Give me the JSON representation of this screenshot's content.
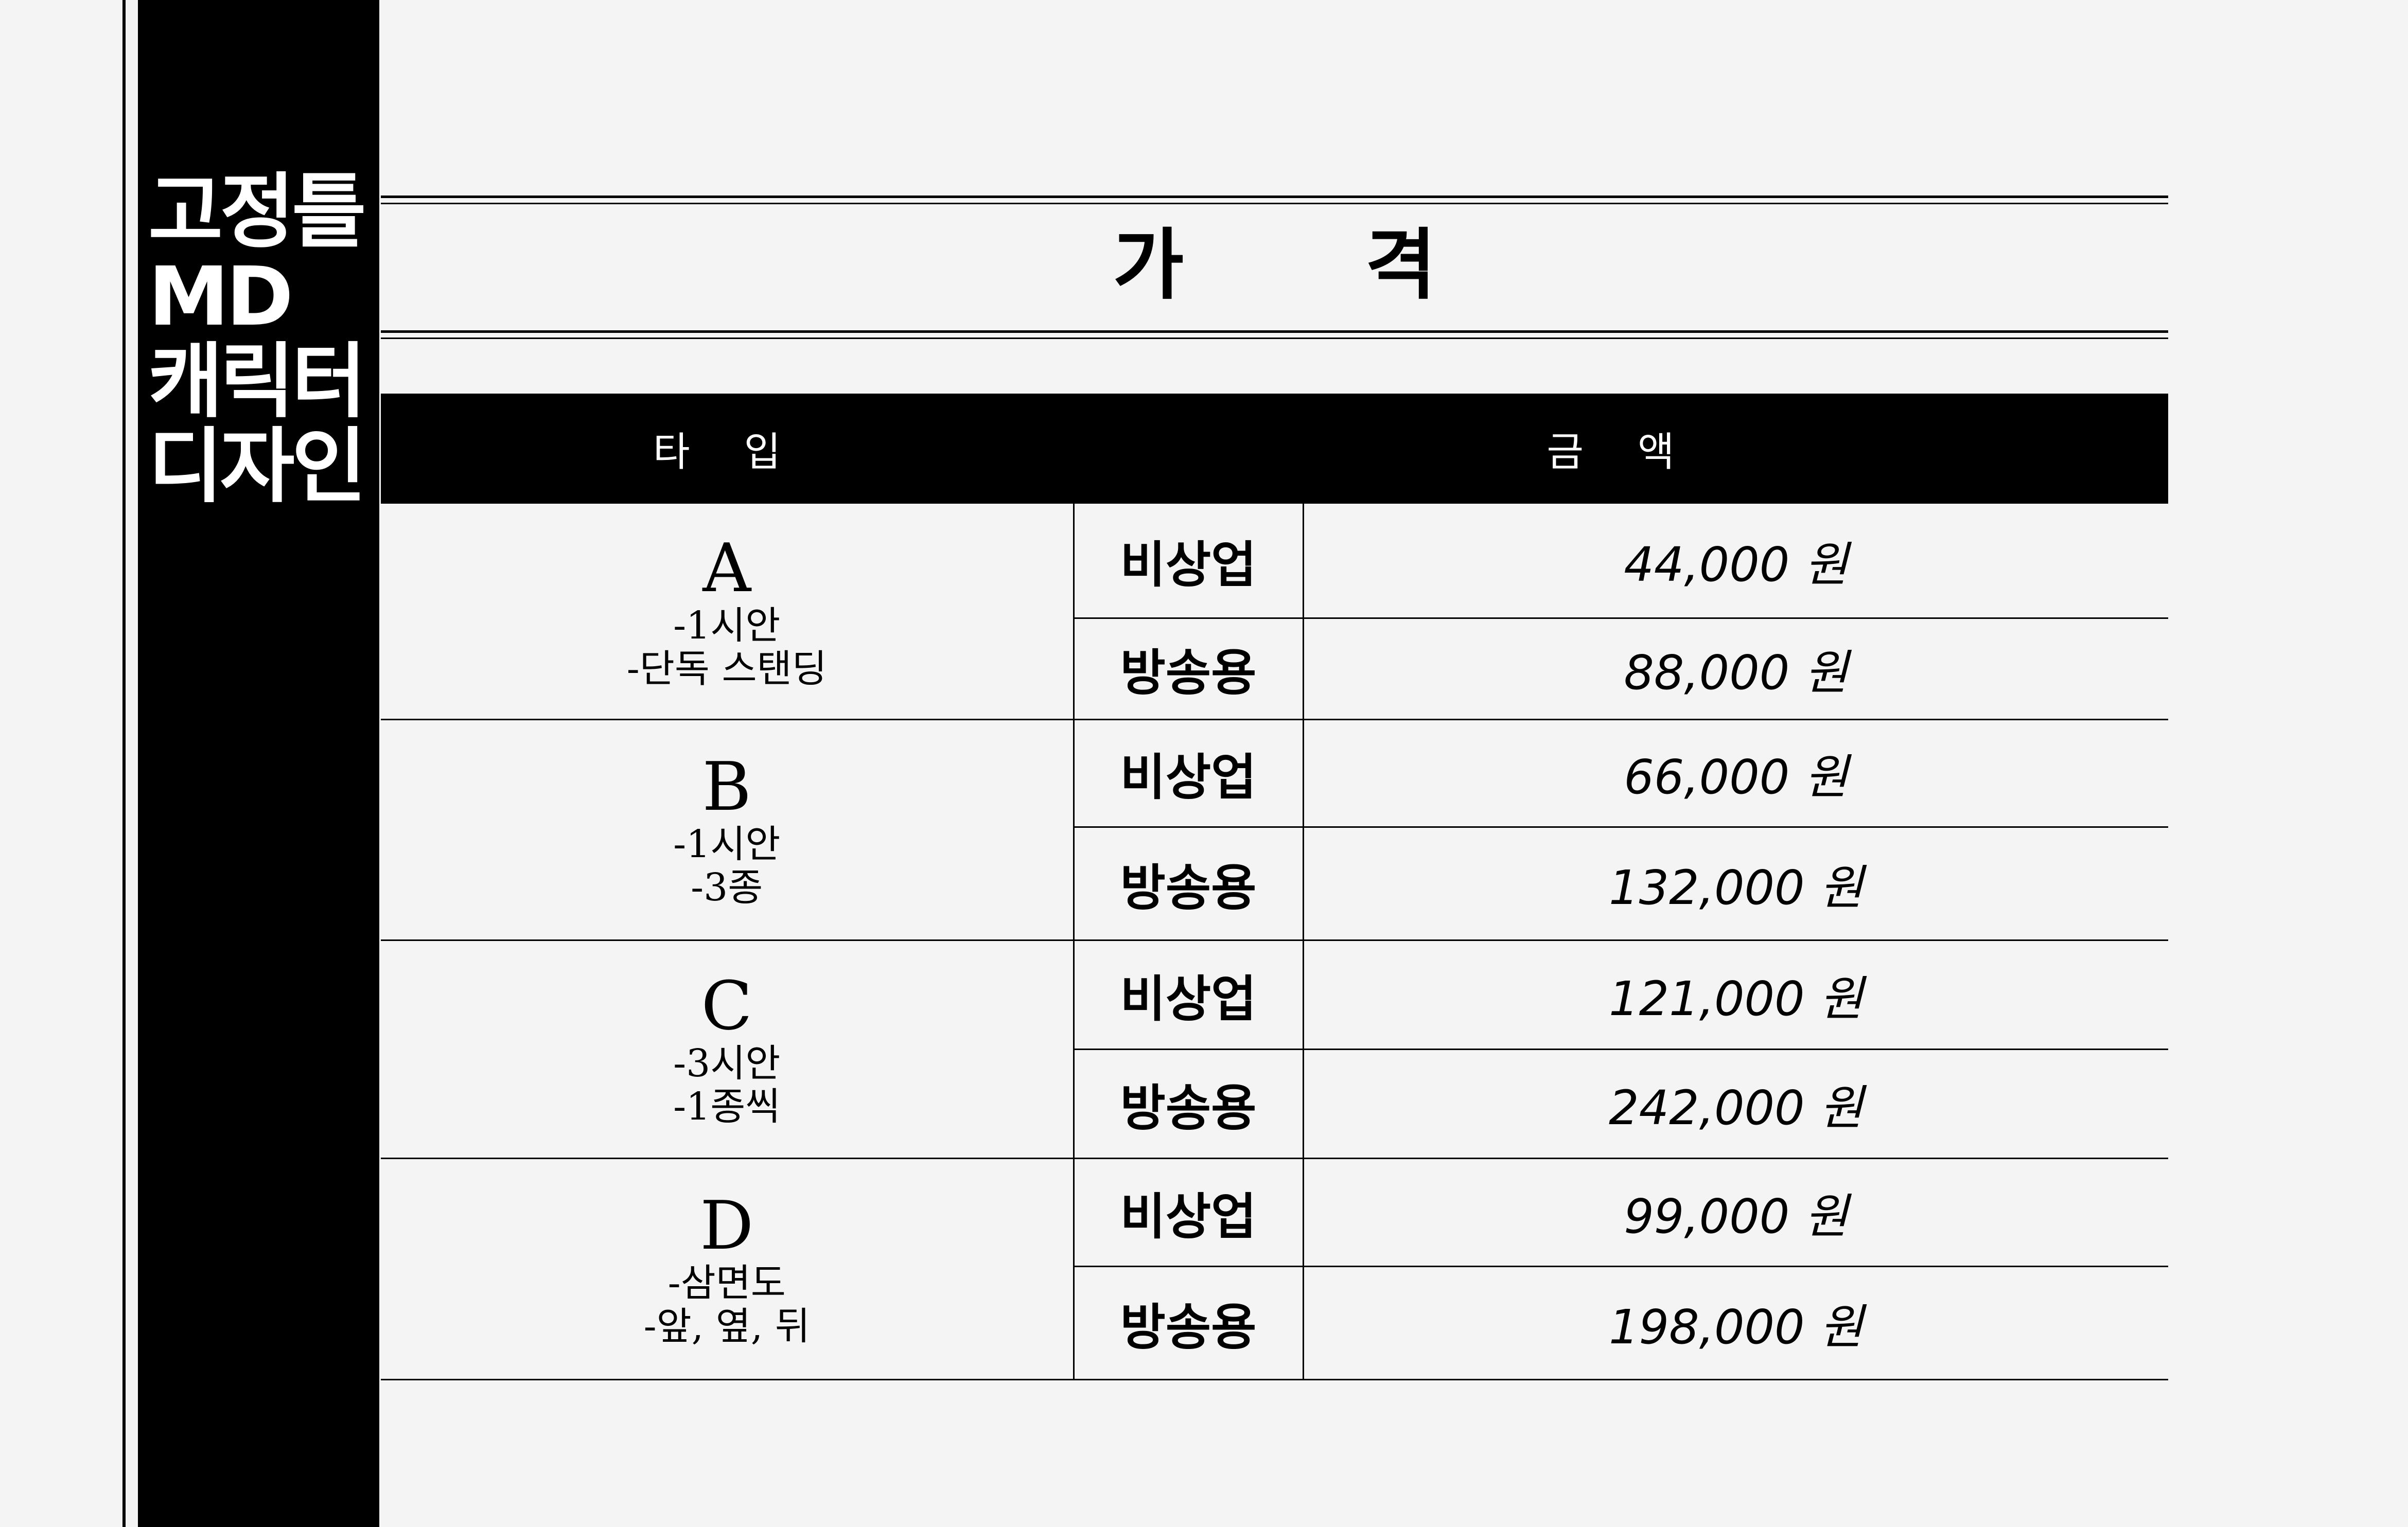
{
  "sidebar": {
    "title_lines": [
      "고정틀",
      "MD",
      "캐릭터",
      "디자인"
    ]
  },
  "page": {
    "title": "가 격"
  },
  "table": {
    "headers": {
      "type": "타 입",
      "amount": "금 액"
    },
    "rows": [
      {
        "letter": "A",
        "desc": [
          "-1시안",
          "-단독 스탠딩"
        ],
        "prices": [
          {
            "use": "비상업",
            "amount": "44,000 원"
          },
          {
            "use": "방송용",
            "amount": "88,000 원"
          }
        ]
      },
      {
        "letter": "B",
        "desc": [
          "-1시안",
          "-3종"
        ],
        "prices": [
          {
            "use": "비상업",
            "amount": "66,000 원"
          },
          {
            "use": "방송용",
            "amount": "132,000 원"
          }
        ]
      },
      {
        "letter": "C",
        "desc": [
          "-3시안",
          "-1종씩"
        ],
        "prices": [
          {
            "use": "비상업",
            "amount": "121,000 원"
          },
          {
            "use": "방송용",
            "amount": "242,000 원"
          }
        ]
      },
      {
        "letter": "D",
        "desc": [
          "-삼면도",
          "-앞, 옆, 뒤"
        ],
        "prices": [
          {
            "use": "비상업",
            "amount": "99,000 원"
          },
          {
            "use": "방송용",
            "amount": "198,000 원"
          }
        ]
      }
    ]
  },
  "colors": {
    "background": "#f4f4f4",
    "sidebar": "#000000",
    "sidebar_text": "#ffffff",
    "header_bg": "#000000",
    "header_text": "#ffffff"
  }
}
